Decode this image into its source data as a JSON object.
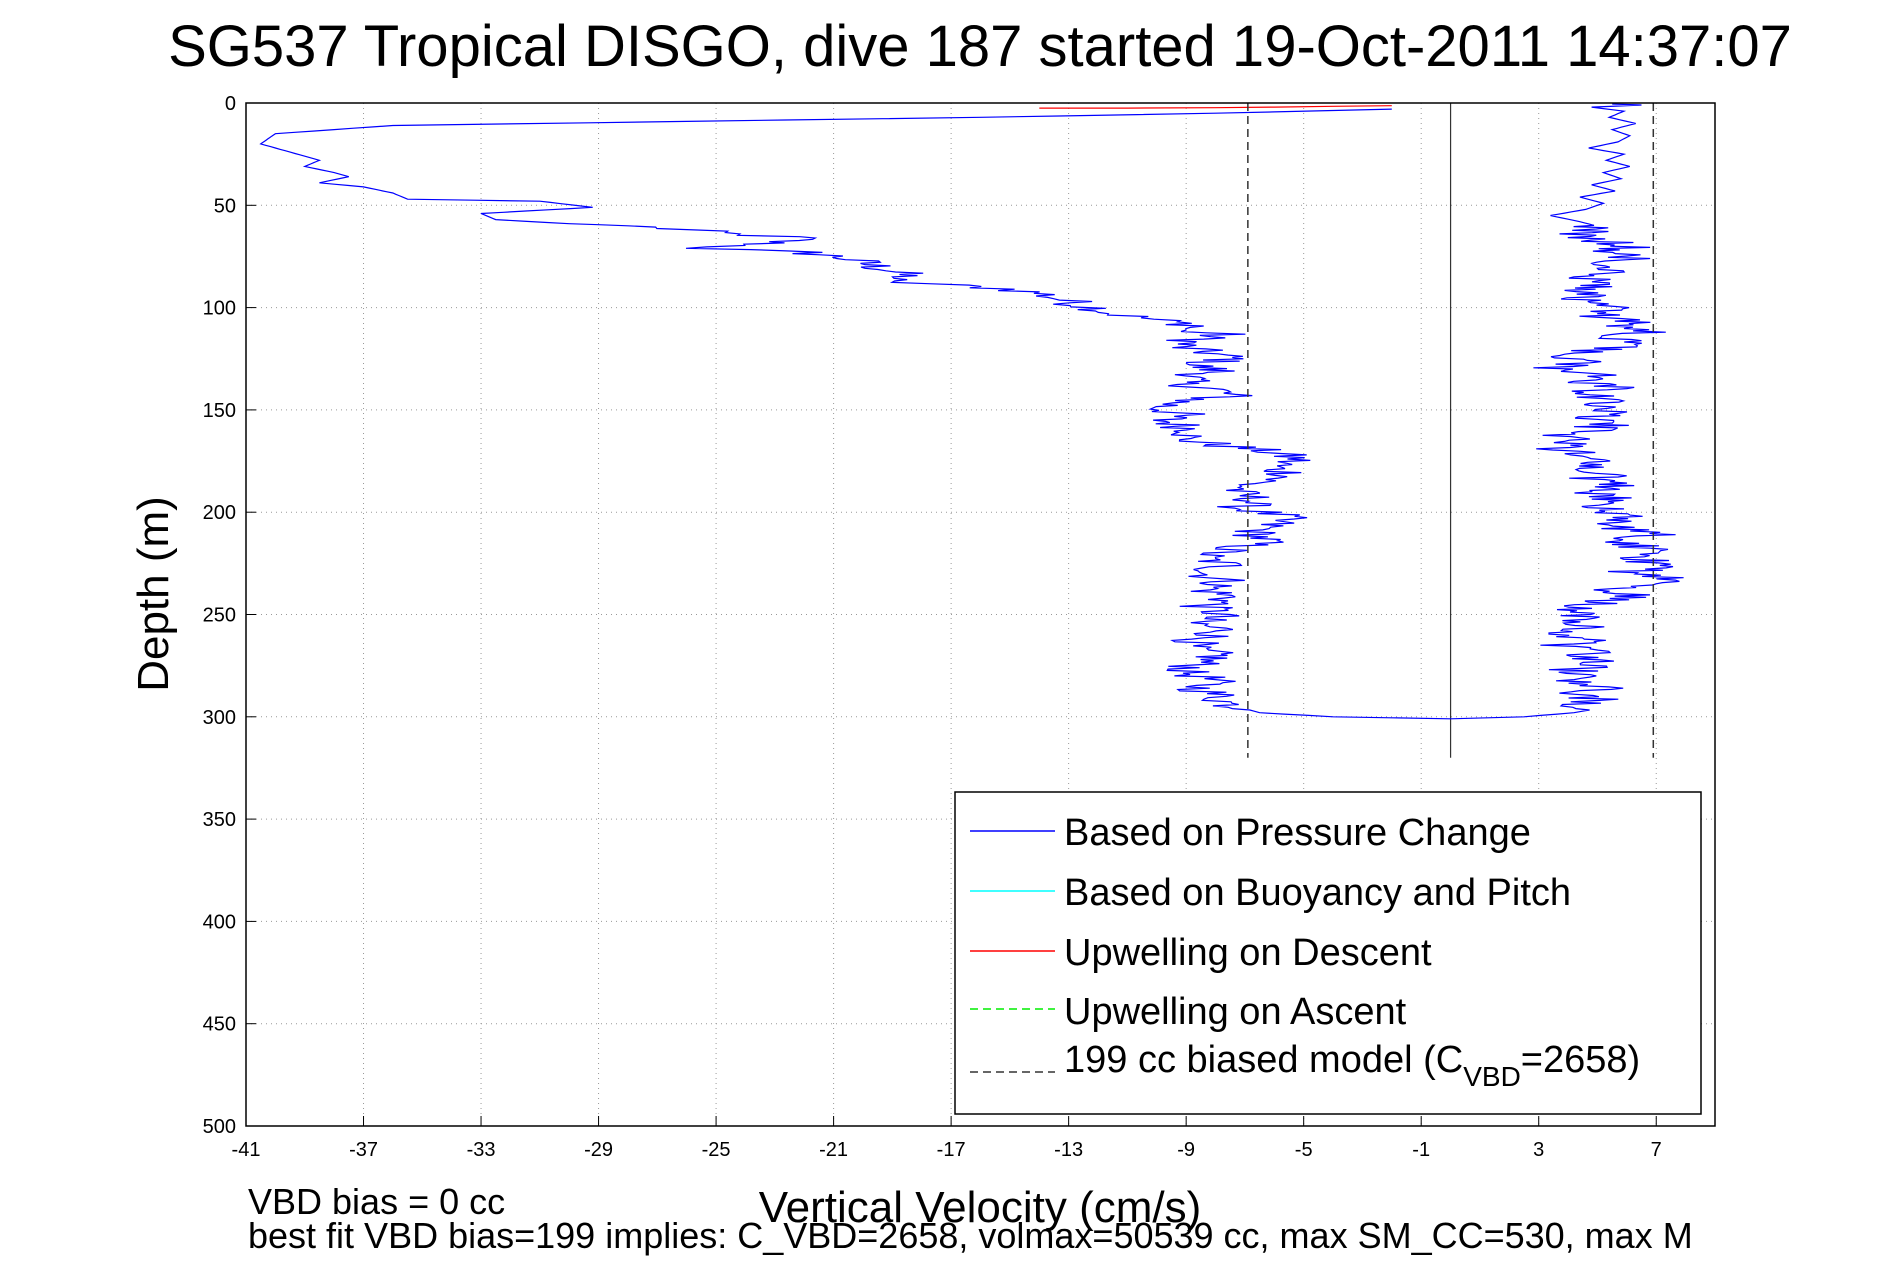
{
  "chart_data": {
    "type": "line",
    "title": "SG537 Tropical DISGO, dive 187 started 19-Oct-2011 14:37:07",
    "xlabel": "Vertical Velocity (cm/s)",
    "ylabel": "Depth (m)",
    "xlim": [
      -41,
      9
    ],
    "ylim": [
      0,
      500
    ],
    "y_reversed": true,
    "grid": true,
    "legend_position": "bottom-right",
    "x_ticks": [
      -41,
      -37,
      -33,
      -29,
      -25,
      -21,
      -17,
      -13,
      -9,
      -5,
      -1,
      3,
      7
    ],
    "y_ticks": [
      0,
      50,
      100,
      150,
      200,
      250,
      300,
      350,
      400,
      450,
      500
    ],
    "series": [
      {
        "name": "Based on Pressure Change",
        "color": "#0000ff",
        "style": "solid",
        "points": [
          [
            -2,
            3
          ],
          [
            -8,
            5
          ],
          [
            -16,
            7
          ],
          [
            -26,
            9
          ],
          [
            -36,
            11
          ],
          [
            -40,
            15
          ],
          [
            -40.5,
            20
          ],
          [
            -39.5,
            24
          ],
          [
            -38.5,
            28
          ],
          [
            -39,
            31
          ],
          [
            -38,
            34
          ],
          [
            -37.5,
            36
          ],
          [
            -38.5,
            39
          ],
          [
            -37,
            41
          ],
          [
            -36,
            44
          ],
          [
            -35.5,
            47
          ],
          [
            -31,
            48
          ],
          [
            -29.2,
            51
          ],
          [
            -33,
            54
          ],
          [
            -32.5,
            57
          ],
          [
            -30,
            59
          ],
          [
            -28,
            60
          ],
          [
            -26,
            62
          ],
          [
            -24.5,
            64
          ],
          [
            -22,
            66
          ],
          [
            -23.5,
            69
          ],
          [
            -25.5,
            71
          ],
          [
            -22,
            73
          ],
          [
            -20.5,
            76
          ],
          [
            -19.8,
            79
          ],
          [
            -19,
            82
          ],
          [
            -18.5,
            85
          ],
          [
            -19.5,
            87
          ],
          [
            -17,
            89
          ],
          [
            -15,
            91
          ],
          [
            -14,
            93
          ],
          [
            -13.5,
            95
          ],
          [
            -13,
            97
          ],
          [
            -12.5,
            99
          ],
          [
            -11.8,
            101
          ],
          [
            -11.5,
            103
          ],
          [
            -10.5,
            105
          ],
          [
            -9.5,
            107
          ],
          [
            -8.5,
            109
          ],
          [
            -9.3,
            111
          ],
          [
            -7.8,
            113
          ],
          [
            -8.8,
            116
          ],
          [
            -9.3,
            119
          ],
          [
            -8.2,
            122
          ],
          [
            -7.4,
            125
          ],
          [
            -8.8,
            128
          ],
          [
            -7.9,
            131
          ],
          [
            -8.9,
            134
          ],
          [
            -9.2,
            137
          ],
          [
            -8,
            140
          ],
          [
            -7.5,
            143
          ],
          [
            -9.2,
            146
          ],
          [
            -9.9,
            149
          ],
          [
            -9.2,
            152
          ],
          [
            -9.8,
            155
          ],
          [
            -9.1,
            158
          ],
          [
            -8.6,
            161
          ],
          [
            -9.2,
            164
          ],
          [
            -8,
            167
          ],
          [
            -6.3,
            170
          ],
          [
            -5.2,
            174
          ],
          [
            -6.1,
            178
          ],
          [
            -5.3,
            182
          ],
          [
            -6.8,
            186
          ],
          [
            -7.4,
            190
          ],
          [
            -6.6,
            194
          ],
          [
            -7.2,
            198
          ],
          [
            -5.7,
            202
          ],
          [
            -6.1,
            206
          ],
          [
            -6.7,
            210
          ],
          [
            -6.3,
            214
          ],
          [
            -7.5,
            218
          ],
          [
            -8.5,
            222
          ],
          [
            -7.6,
            226
          ],
          [
            -8.4,
            230
          ],
          [
            -7.6,
            234
          ],
          [
            -8.3,
            238
          ],
          [
            -7.4,
            242
          ],
          [
            -8.4,
            246
          ],
          [
            -7.8,
            250
          ],
          [
            -8.8,
            254
          ],
          [
            -7.6,
            258
          ],
          [
            -8.5,
            262
          ],
          [
            -9,
            266
          ],
          [
            -7.9,
            270
          ],
          [
            -8.6,
            274
          ],
          [
            -9.1,
            278
          ],
          [
            -8.1,
            282
          ],
          [
            -8.6,
            286
          ],
          [
            -7.9,
            290
          ],
          [
            -7.5,
            294
          ],
          [
            -6.5,
            298
          ],
          [
            -4,
            300
          ],
          [
            0,
            301
          ],
          [
            2.5,
            300
          ],
          [
            4.2,
            298
          ],
          [
            5,
            296
          ],
          [
            4.2,
            294
          ],
          [
            5.1,
            292
          ],
          [
            4.4,
            289
          ],
          [
            5.3,
            286
          ],
          [
            4.3,
            283
          ],
          [
            5.1,
            280
          ],
          [
            4.1,
            277
          ],
          [
            5.2,
            274
          ],
          [
            4.2,
            271
          ],
          [
            5.4,
            268
          ],
          [
            3.9,
            265
          ],
          [
            4.8,
            262
          ],
          [
            3.4,
            259
          ],
          [
            4.4,
            256
          ],
          [
            3.7,
            253
          ],
          [
            4.6,
            250
          ],
          [
            4.2,
            247
          ],
          [
            5.3,
            244
          ],
          [
            6.1,
            241
          ],
          [
            5.4,
            238
          ],
          [
            6.7,
            235
          ],
          [
            7.5,
            232
          ],
          [
            6.2,
            229
          ],
          [
            7.2,
            226
          ],
          [
            6.5,
            223
          ],
          [
            7.3,
            220
          ],
          [
            6.6,
            217
          ],
          [
            6,
            214
          ],
          [
            6.8,
            211
          ],
          [
            5.9,
            208
          ],
          [
            5.2,
            205
          ],
          [
            6.3,
            202
          ],
          [
            5.4,
            199
          ],
          [
            4.8,
            196
          ],
          [
            5.6,
            193
          ],
          [
            4.7,
            190
          ],
          [
            5.6,
            187
          ],
          [
            4.8,
            184
          ],
          [
            5.3,
            181
          ],
          [
            4.5,
            178
          ],
          [
            5.2,
            175
          ],
          [
            4.5,
            172
          ],
          [
            3.6,
            169
          ],
          [
            4.4,
            166
          ],
          [
            3.5,
            163
          ],
          [
            4.6,
            160
          ],
          [
            5.4,
            157
          ],
          [
            4.5,
            154
          ],
          [
            5.6,
            151
          ],
          [
            4.6,
            148
          ],
          [
            5.3,
            145
          ],
          [
            4.3,
            142
          ],
          [
            5.5,
            139
          ],
          [
            4.6,
            136
          ],
          [
            5.6,
            133
          ],
          [
            3.4,
            130
          ],
          [
            4.5,
            127
          ],
          [
            3.7,
            124
          ],
          [
            4.8,
            121
          ],
          [
            6.2,
            118
          ],
          [
            5.3,
            115
          ],
          [
            6.8,
            112
          ],
          [
            5.7,
            109
          ],
          [
            6.2,
            106
          ],
          [
            4.6,
            103
          ],
          [
            5.4,
            100
          ],
          [
            4.2,
            97
          ],
          [
            5.3,
            94
          ],
          [
            4.4,
            91
          ],
          [
            5.6,
            88
          ],
          [
            4.7,
            85
          ],
          [
            5.8,
            82
          ],
          [
            4.9,
            79
          ],
          [
            6.1,
            76
          ],
          [
            5.4,
            73
          ],
          [
            6.2,
            70
          ],
          [
            5.1,
            67
          ],
          [
            4.3,
            64
          ],
          [
            5.2,
            61
          ],
          [
            4.4,
            58
          ],
          [
            3.4,
            55
          ],
          [
            4.6,
            52
          ],
          [
            5.2,
            49
          ],
          [
            4.4,
            46
          ],
          [
            5.6,
            43
          ],
          [
            4.8,
            40
          ],
          [
            5.8,
            37
          ],
          [
            5.2,
            34
          ],
          [
            6.1,
            31
          ],
          [
            5.3,
            28
          ],
          [
            5.9,
            25
          ],
          [
            4.7,
            22
          ],
          [
            5.7,
            19
          ],
          [
            6.1,
            16
          ],
          [
            5.5,
            13
          ],
          [
            6.3,
            10
          ],
          [
            5.4,
            7
          ],
          [
            5.9,
            4
          ],
          [
            4.8,
            2
          ],
          [
            6.5,
            1
          ],
          [
            5.5,
            0.5
          ]
        ],
        "noise": 0.9
      },
      {
        "name": "Based on Buoyancy and Pitch",
        "color": "#00ffff",
        "style": "solid",
        "points": []
      },
      {
        "name": "Upwelling on Descent",
        "color": "#ff0000",
        "style": "solid",
        "points": [
          [
            -14,
            2.5
          ],
          [
            -11,
            2.5
          ],
          [
            -8,
            2.3
          ],
          [
            -6,
            2
          ],
          [
            -4,
            1.6
          ],
          [
            -2,
            1.3
          ]
        ]
      },
      {
        "name": "Upwelling on Ascent",
        "color": "#00cc00",
        "style": "dashed",
        "points": []
      },
      {
        "name": "199 cc biased model (C",
        "name_sub": "VBD",
        "name_suffix": "=2658)",
        "color": "#333333",
        "style": "dashed",
        "lines": [
          {
            "x": -6.9,
            "y": [
              0,
              320
            ]
          },
          {
            "x": 6.9,
            "y": [
              0,
              320
            ]
          }
        ]
      }
    ],
    "reference_lines": [
      {
        "x": 0,
        "y": [
          0,
          320
        ],
        "color": "#333333",
        "style": "solid"
      }
    ]
  },
  "footer": {
    "line1": "VBD bias = 0 cc",
    "line2": "best fit VBD bias=199 implies: C_VBD=2658, volmax=50539 cc, max SM_CC=530, max M"
  }
}
